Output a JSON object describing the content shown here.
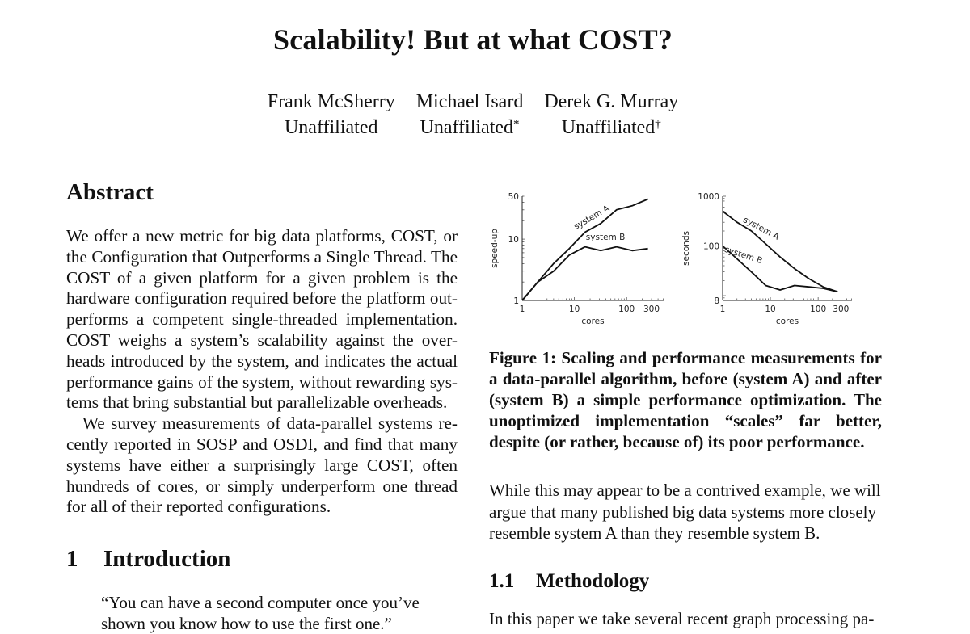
{
  "title": "Scalability! But at what COST?",
  "authors": [
    {
      "name": "Frank McSherry",
      "affiliation": "Unaffiliated",
      "mark": ""
    },
    {
      "name": "Michael Isard",
      "affiliation": "Unaffiliated",
      "mark": "*"
    },
    {
      "name": "Derek G. Murray",
      "affiliation": "Unaffiliated",
      "mark": "†"
    }
  ],
  "abstract": {
    "heading": "Abstract",
    "paragraphs": [
      "We offer a new metric for big data platforms, COST, or the Configuration that Outperforms a Single Thread. The COST of a given platform for a given problem is the hardware configuration required before the platform out-performs a competent single-threaded implementation. COST weighs a system’s scalability against the over-heads introduced by the system, and indicates the actual performance gains of the system, without rewarding sys-tems that bring substantial but parallelizable overheads.",
      "We survey measurements of data-parallel systems re-cently reported in SOSP and OSDI, and find that many systems have either a surprisingly large COST, often hundreds of cores, or simply underperform one thread for all of their reported configurations."
    ]
  },
  "introduction": {
    "number": "1",
    "heading": "Introduction",
    "quote": "“You can have a second computer once you’ve shown you know how to use the first one.”"
  },
  "figure": {
    "caption": "Figure 1:  Scaling and performance measurements for a data-parallel algorithm, before (system A) and after (system B) a simple performance optimization. The unoptimized implementation “scales” far better, despite (or rather, because of) its poor performance."
  },
  "chart_data": [
    {
      "type": "line",
      "title": "",
      "xlabel": "cores",
      "ylabel": "speed-up",
      "xscale": "log",
      "yscale": "log",
      "xlim": [
        1,
        512
      ],
      "ylim": [
        1,
        50
      ],
      "xticks": [
        "1",
        "10",
        "100",
        "300"
      ],
      "yticks": [
        "1",
        "10",
        "50"
      ],
      "series": [
        {
          "name": "system A",
          "x": [
            1,
            2,
            4,
            8,
            16,
            32,
            64,
            128,
            256
          ],
          "y": [
            1,
            2,
            4,
            7,
            13,
            18,
            30,
            35,
            45
          ]
        },
        {
          "name": "system B",
          "x": [
            1,
            2,
            4,
            8,
            16,
            32,
            64,
            128,
            256
          ],
          "y": [
            1,
            2,
            3,
            5.5,
            7.5,
            6.5,
            7.5,
            6.5,
            7
          ]
        }
      ]
    },
    {
      "type": "line",
      "title": "",
      "xlabel": "cores",
      "ylabel": "seconds",
      "xscale": "log",
      "yscale": "log",
      "xlim": [
        1,
        512
      ],
      "ylim": [
        8,
        1000
      ],
      "xticks": [
        "1",
        "10",
        "100",
        "300"
      ],
      "yticks": [
        "8",
        "100",
        "1000"
      ],
      "series": [
        {
          "name": "system A",
          "x": [
            1,
            2,
            4,
            8,
            16,
            32,
            64,
            128,
            256
          ],
          "y": [
            500,
            300,
            200,
            110,
            60,
            35,
            22,
            15,
            12
          ]
        },
        {
          "name": "system B",
          "x": [
            1,
            2,
            4,
            8,
            16,
            32,
            64,
            128,
            256
          ],
          "y": [
            100,
            55,
            30,
            16,
            13,
            16,
            15,
            14,
            12
          ]
        }
      ]
    }
  ],
  "body_paragraph": "While this may appear to be a contrived example, we will argue that many published big data systems more closely resemble system A than they resemble system B.",
  "methodology": {
    "number": "1.1",
    "heading": "Methodology",
    "text": "In this paper we take several recent graph processing pa-"
  }
}
